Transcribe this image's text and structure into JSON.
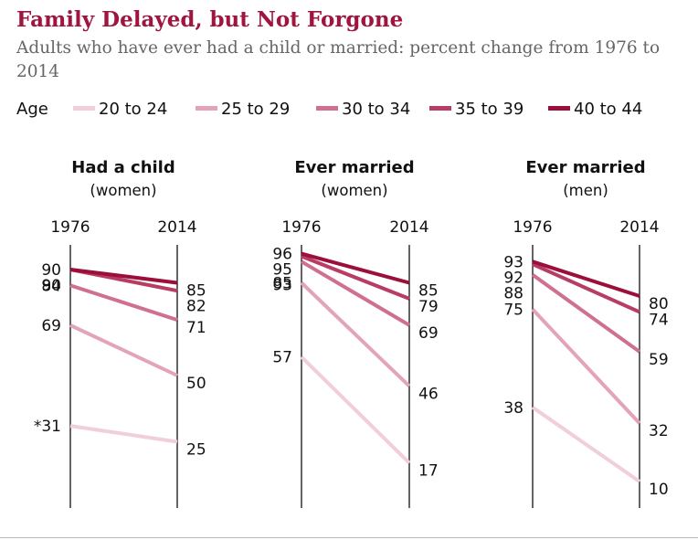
{
  "title": "Family Delayed, but Not Forgone",
  "subtitle": "Adults who have ever had a child or married: percent change from 1976 to 2014",
  "legend": {
    "title": "Age",
    "items": [
      {
        "label": "20 to 24",
        "color": "#f0cfd9"
      },
      {
        "label": "25 to 29",
        "color": "#e3a4b8"
      },
      {
        "label": "30 to 34",
        "color": "#cf7090"
      },
      {
        "label": "35 to 39",
        "color": "#b83d64"
      },
      {
        "label": "40 to 44",
        "color": "#9c0f3a"
      }
    ]
  },
  "chart_data": [
    {
      "type": "line",
      "title": "Had a child",
      "subtitle": "(women)",
      "x": [
        "1976",
        "2014"
      ],
      "series": [
        {
          "name": "20 to 24",
          "values": [
            31,
            25
          ],
          "start_label": "*31"
        },
        {
          "name": "25 to 29",
          "values": [
            69,
            50
          ]
        },
        {
          "name": "30 to 34",
          "values": [
            84,
            71
          ]
        },
        {
          "name": "35 to 39",
          "values": [
            90,
            82
          ]
        },
        {
          "name": "40 to 44",
          "values": [
            90,
            85
          ]
        }
      ]
    },
    {
      "type": "line",
      "title": "Ever married",
      "subtitle": "(women)",
      "x": [
        "1976",
        "2014"
      ],
      "series": [
        {
          "name": "20 to 24",
          "values": [
            57,
            17
          ]
        },
        {
          "name": "25 to 29",
          "values": [
            85,
            46
          ]
        },
        {
          "name": "30 to 34",
          "values": [
            93,
            69
          ]
        },
        {
          "name": "35 to 39",
          "values": [
            95,
            79
          ]
        },
        {
          "name": "40 to 44",
          "values": [
            96,
            85
          ]
        }
      ]
    },
    {
      "type": "line",
      "title": "Ever married",
      "subtitle": "(men)",
      "x": [
        "1976",
        "2014"
      ],
      "series": [
        {
          "name": "20 to 24",
          "values": [
            38,
            10
          ]
        },
        {
          "name": "25 to 29",
          "values": [
            75,
            32
          ]
        },
        {
          "name": "30 to 34",
          "values": [
            88,
            59
          ]
        },
        {
          "name": "35 to 39",
          "values": [
            92,
            74
          ]
        },
        {
          "name": "40 to 44",
          "values": [
            93,
            80
          ]
        }
      ]
    }
  ]
}
